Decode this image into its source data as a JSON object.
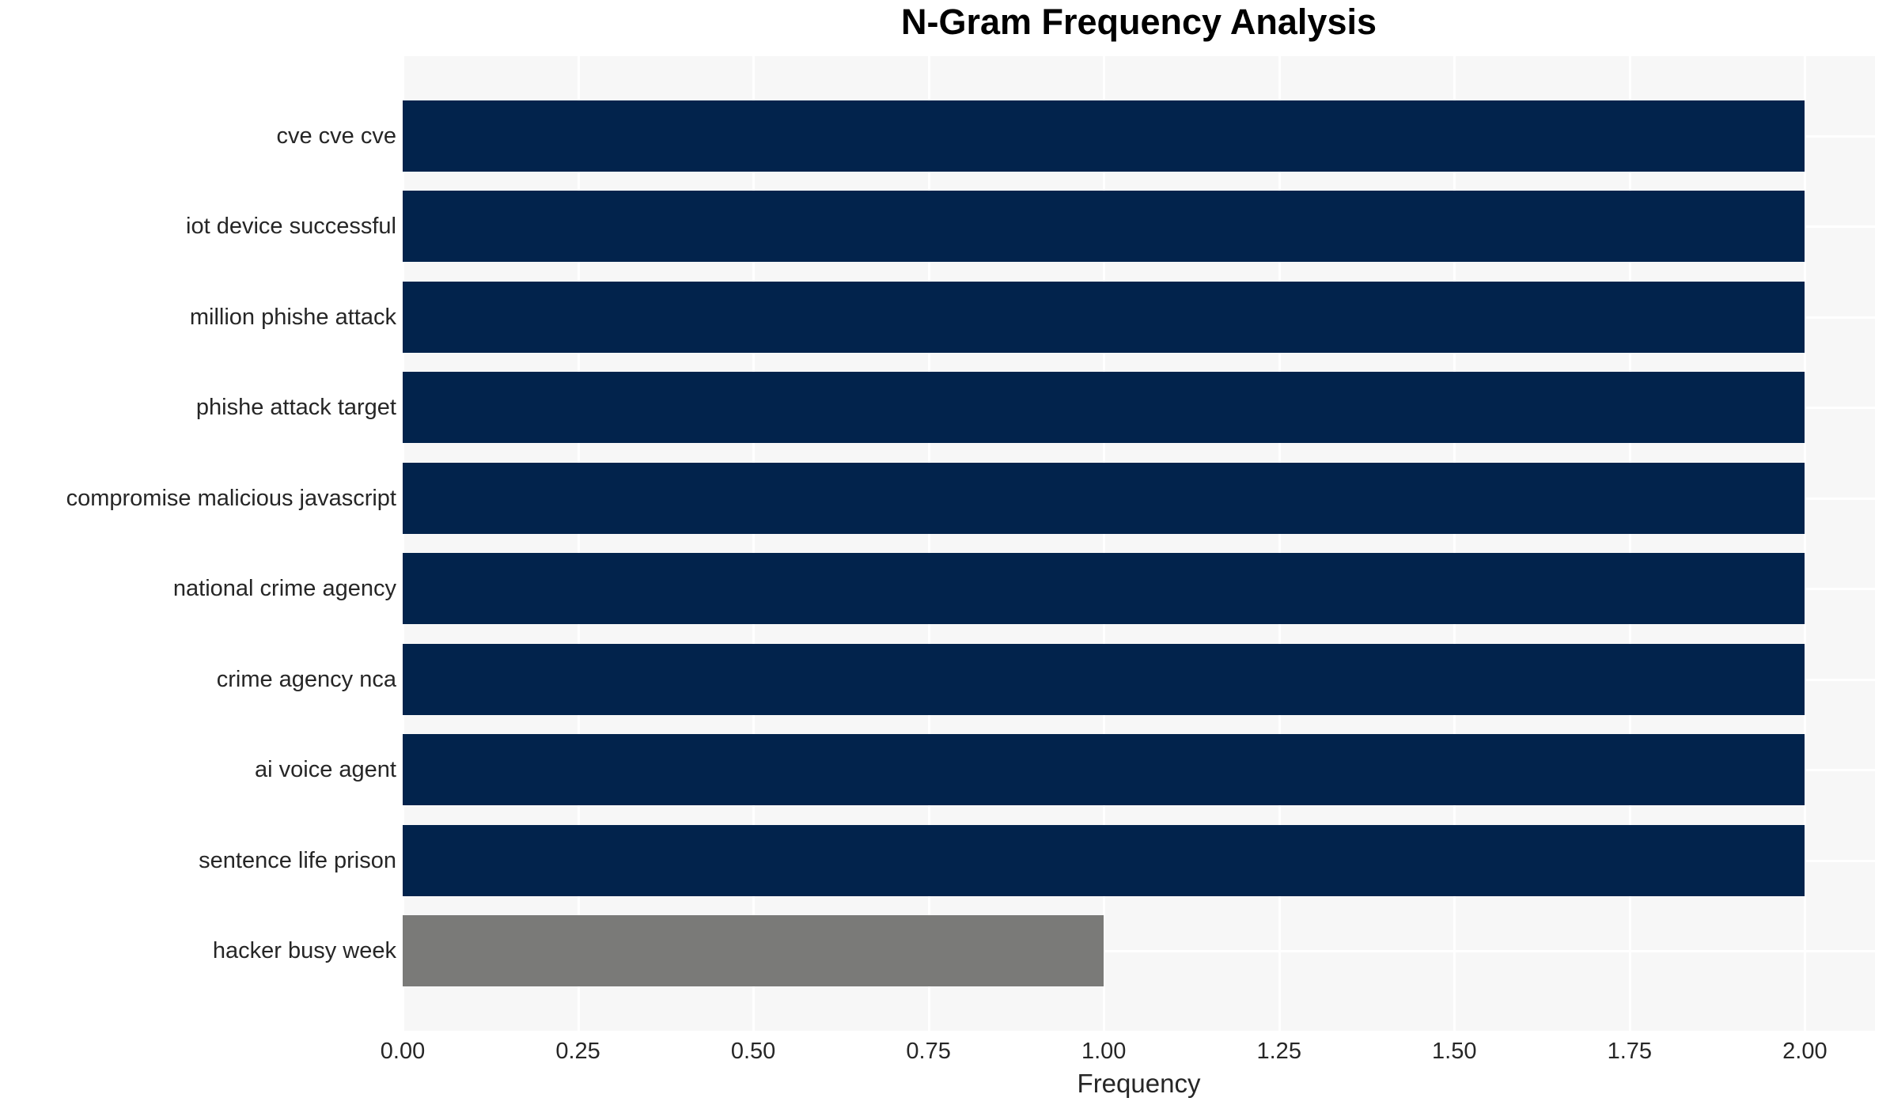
{
  "chart_data": {
    "type": "bar",
    "orientation": "horizontal",
    "title": "N-Gram Frequency Analysis",
    "xlabel": "Frequency",
    "ylabel": "",
    "categories": [
      "cve cve cve",
      "iot device successful",
      "million phishe attack",
      "phishe attack target",
      "compromise malicious javascript",
      "national crime agency",
      "crime agency nca",
      "ai voice agent",
      "sentence life prison",
      "hacker busy week"
    ],
    "values": [
      2,
      2,
      2,
      2,
      2,
      2,
      2,
      2,
      2,
      1
    ],
    "bar_colors": [
      "#02234c",
      "#02234c",
      "#02234c",
      "#02234c",
      "#02234c",
      "#02234c",
      "#02234c",
      "#02234c",
      "#02234c",
      "#7a7a78"
    ],
    "xticks": [
      {
        "value": 0.0,
        "label": "0.00"
      },
      {
        "value": 0.25,
        "label": "0.25"
      },
      {
        "value": 0.5,
        "label": "0.50"
      },
      {
        "value": 0.75,
        "label": "0.75"
      },
      {
        "value": 1.0,
        "label": "1.00"
      },
      {
        "value": 1.25,
        "label": "1.25"
      },
      {
        "value": 1.5,
        "label": "1.50"
      },
      {
        "value": 1.75,
        "label": "1.75"
      },
      {
        "value": 2.0,
        "label": "2.00"
      }
    ],
    "xlim": [
      0,
      2.1
    ],
    "grid": true,
    "legend_position": "none",
    "colors": {
      "plot_background": "#f7f7f7",
      "gridline": "#ffffff",
      "title_text": "#000000",
      "axis_text": "#262626",
      "bar_primary": "#02234c",
      "bar_highlight": "#7a7a78"
    }
  }
}
